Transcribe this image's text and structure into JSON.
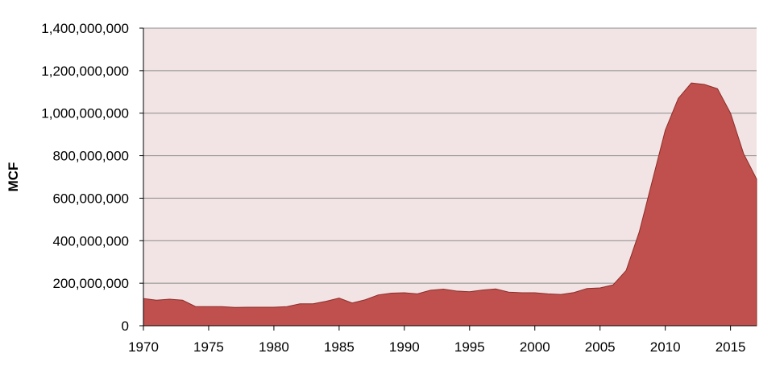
{
  "chart_data": {
    "type": "area",
    "xlabel": "",
    "ylabel": "MCF",
    "xlim": [
      1970,
      2017
    ],
    "ylim": [
      0,
      1400000000
    ],
    "grid": true,
    "x_ticks": [
      1970,
      1975,
      1980,
      1985,
      1990,
      1995,
      2000,
      2005,
      2010,
      2015
    ],
    "x_tick_labels": [
      "1970",
      "1975",
      "1980",
      "1985",
      "1990",
      "1995",
      "2000",
      "2005",
      "2010",
      "2015"
    ],
    "y_ticks": [
      0,
      200000000,
      400000000,
      600000000,
      800000000,
      1000000000,
      1200000000,
      1400000000
    ],
    "y_tick_labels": [
      "0",
      "200,000,000",
      "400,000,000",
      "600,000,000",
      "800,000,000",
      "1,000,000,000",
      "1,200,000,000",
      "1,400,000,000"
    ],
    "colors": {
      "area_fill": "#c0504d",
      "area_stroke": "#8c2d2a",
      "plot_background": "#f2e4e4",
      "gridline": "#8c8c8c",
      "axis": "#000000"
    },
    "series": [
      {
        "x": [
          1970,
          1971,
          1972,
          1973,
          1974,
          1975,
          1976,
          1977,
          1978,
          1979,
          1980,
          1981,
          1982,
          1983,
          1984,
          1985,
          1986,
          1987,
          1988,
          1989,
          1990,
          1991,
          1992,
          1993,
          1994,
          1995,
          1996,
          1997,
          1998,
          1999,
          2000,
          2001,
          2002,
          2003,
          2004,
          2005,
          2006,
          2007,
          2008,
          2009,
          2010,
          2011,
          2012,
          2013,
          2014,
          2015,
          2016,
          2017
        ],
        "values": [
          128000000,
          120000000,
          125000000,
          120000000,
          90000000,
          90000000,
          90000000,
          86000000,
          87000000,
          87000000,
          87000000,
          90000000,
          103000000,
          103000000,
          115000000,
          130000000,
          107000000,
          122000000,
          145000000,
          153000000,
          155000000,
          150000000,
          167000000,
          172000000,
          163000000,
          160000000,
          168000000,
          173000000,
          158000000,
          155000000,
          155000000,
          150000000,
          147000000,
          156000000,
          175000000,
          178000000,
          192000000,
          260000000,
          440000000,
          680000000,
          920000000,
          1070000000,
          1142000000,
          1135000000,
          1115000000,
          1000000000,
          810000000,
          690000000
        ]
      }
    ]
  }
}
